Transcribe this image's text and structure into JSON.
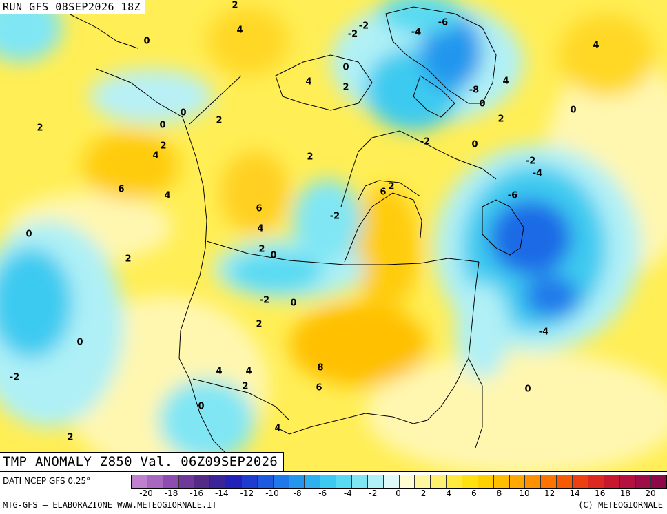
{
  "header": {
    "run_label": "RUN GFS 08SEP2026 18Z"
  },
  "map": {
    "title": "TMP ANOMALY Z850 Val. 06Z09SEP2026",
    "contour_labels": [
      "2",
      "-2",
      "4",
      "-4",
      "-6",
      "0",
      "-2",
      "0",
      "2",
      "2",
      "4",
      "-8",
      "0",
      "4",
      "0",
      "2",
      "0",
      "2",
      "0",
      "2",
      "2",
      "-2",
      "0",
      "-2",
      "4",
      "2",
      "-4",
      "6",
      "4",
      "6",
      "4",
      "-6",
      "6",
      "0",
      "-2",
      "4",
      "2",
      "0",
      "-2",
      "2",
      "0",
      "-2",
      "0",
      "2",
      "-4",
      "8",
      "4",
      "4",
      "2",
      "6",
      "0",
      "0",
      "2",
      "4"
    ]
  },
  "legend": {
    "source": "DATI NCEP GFS 0.25°",
    "colors": [
      "#c080d0",
      "#a868c0",
      "#8c4cb0",
      "#703898",
      "#542c88",
      "#3a2498",
      "#2222b8",
      "#1e3cd0",
      "#1e5ae0",
      "#2078ea",
      "#2496ee",
      "#2cb0f0",
      "#3ccaf0",
      "#58daf2",
      "#80e6f4",
      "#b0f0f6",
      "#e0fafa",
      "#fffcd0",
      "#fff6a0",
      "#fff070",
      "#ffea40",
      "#ffe010",
      "#ffd000",
      "#ffbe00",
      "#ffa800",
      "#ff9000",
      "#ff7400",
      "#f85a00",
      "#ec4010",
      "#dc2820",
      "#c81830",
      "#b41040",
      "#a00c48",
      "#8c0848"
    ],
    "ticks": [
      "-20",
      "-18",
      "-16",
      "-14",
      "-12",
      "-10",
      "-8",
      "-6",
      "-4",
      "-2",
      "0",
      "2",
      "4",
      "6",
      "8",
      "10",
      "12",
      "14",
      "16",
      "18",
      "20"
    ]
  },
  "footer": {
    "credit_left": "MTG-GFS – ELABORAZIONE WWW.METEOGIORNALE.IT",
    "credit_right": "(C) METEOGIORNALE"
  }
}
